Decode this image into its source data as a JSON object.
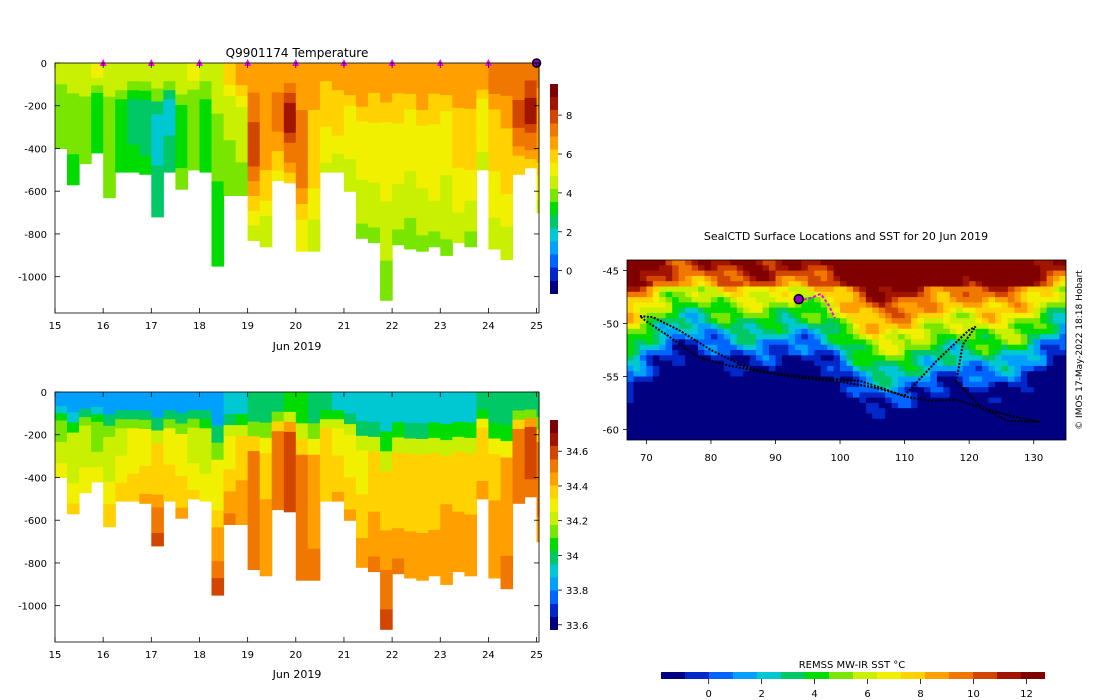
{
  "colors": {
    "ocean": [
      "#000080",
      "#0028c8",
      "#0064ff",
      "#00a0ff",
      "#00c8d2",
      "#00c864",
      "#00dc00",
      "#78e600",
      "#c8f000",
      "#f0f000",
      "#ffd200",
      "#ffa000",
      "#f07800",
      "#d24600",
      "#a01400",
      "#800000"
    ],
    "surface_marker": "#ff00ff",
    "track": "#000000",
    "tag_start": "#8800cc"
  },
  "chart_data": [
    {
      "id": "temperature-section",
      "type": "heatmap",
      "title": "Q9901174  Temperature",
      "xlabel": "Jun 2019",
      "xticks": [
        15,
        16,
        17,
        18,
        19,
        20,
        21,
        22,
        23,
        24,
        25
      ],
      "xlim": [
        15,
        25.05
      ],
      "yticks": [
        0,
        -200,
        -400,
        -600,
        -800,
        -1000
      ],
      "ylim": [
        -1170,
        0
      ],
      "colorbar": {
        "ticks": [
          0,
          2,
          4,
          6,
          8
        ],
        "lim": [
          -1.2,
          9.6
        ]
      },
      "surface_marks": [
        16,
        17,
        18,
        19,
        20,
        21,
        22,
        23,
        24,
        25
      ],
      "profiles": [
        {
          "x": 15.0,
          "depth": 400,
          "surf": 4.6,
          "mid": 3.8,
          "deep": 3.5
        },
        {
          "x": 15.25,
          "depth": 570,
          "surf": 4.8,
          "mid": 3.6,
          "deep": 3.4
        },
        {
          "x": 15.5,
          "depth": 470,
          "surf": 4.8,
          "mid": 4.0,
          "deep": 3.6
        },
        {
          "x": 15.75,
          "depth": 420,
          "surf": 4.9,
          "mid": 3.5,
          "deep": 3.4
        },
        {
          "x": 16.0,
          "depth": 630,
          "surf": 4.7,
          "mid": 3.7,
          "deep": 3.6
        },
        {
          "x": 16.25,
          "depth": 510,
          "surf": 4.6,
          "mid": 3.3,
          "deep": 3.5
        },
        {
          "x": 16.5,
          "depth": 510,
          "surf": 4.6,
          "mid": 2.6,
          "deep": 3.3
        },
        {
          "x": 16.75,
          "depth": 520,
          "surf": 4.6,
          "mid": 2.4,
          "deep": 3.2
        },
        {
          "x": 17.0,
          "depth": 720,
          "surf": 4.7,
          "mid": 1.9,
          "deep": 2.8
        },
        {
          "x": 17.25,
          "depth": 510,
          "surf": 4.6,
          "mid": 2.0,
          "deep": 2.6
        },
        {
          "x": 17.5,
          "depth": 590,
          "surf": 4.8,
          "mid": 3.4,
          "deep": 3.6
        },
        {
          "x": 17.75,
          "depth": 500,
          "surf": 4.9,
          "mid": 3.9,
          "deep": 3.6
        },
        {
          "x": 18.0,
          "depth": 510,
          "surf": 4.4,
          "mid": 3.5,
          "deep": 3.3
        },
        {
          "x": 18.25,
          "depth": 950,
          "surf": 4.8,
          "mid": 3.6,
          "deep": 2.9
        },
        {
          "x": 18.5,
          "depth": 620,
          "surf": 5.8,
          "mid": 4.3,
          "deep": 3.6
        },
        {
          "x": 18.75,
          "depth": 620,
          "surf": 6.3,
          "mid": 4.8,
          "deep": 3.5
        },
        {
          "x": 19.0,
          "depth": 830,
          "surf": 6.5,
          "mid": 7.9,
          "deep": 4.2
        },
        {
          "x": 19.25,
          "depth": 860,
          "surf": 6.6,
          "mid": 6.4,
          "deep": 4.0
        },
        {
          "x": 19.5,
          "depth": 550,
          "surf": 6.7,
          "mid": 7.2,
          "deep": 5.2
        },
        {
          "x": 19.75,
          "depth": 560,
          "surf": 6.8,
          "mid": 8.5,
          "deep": 5.6
        },
        {
          "x": 20.0,
          "depth": 880,
          "surf": 6.6,
          "mid": 7.4,
          "deep": 4.8
        },
        {
          "x": 20.25,
          "depth": 880,
          "surf": 6.4,
          "mid": 6.0,
          "deep": 4.3
        },
        {
          "x": 20.5,
          "depth": 510,
          "surf": 6.3,
          "mid": 5.6,
          "deep": 4.6
        },
        {
          "x": 20.75,
          "depth": 510,
          "surf": 6.5,
          "mid": 5.8,
          "deep": 4.5
        },
        {
          "x": 21.0,
          "depth": 600,
          "surf": 6.6,
          "mid": 5.4,
          "deep": 4.2
        },
        {
          "x": 21.25,
          "depth": 820,
          "surf": 6.7,
          "mid": 5.2,
          "deep": 4.0
        },
        {
          "x": 21.5,
          "depth": 840,
          "surf": 6.5,
          "mid": 5.3,
          "deep": 4.0
        },
        {
          "x": 21.75,
          "depth": 1110,
          "surf": 6.4,
          "mid": 5.0,
          "deep": 3.7
        },
        {
          "x": 22.0,
          "depth": 850,
          "surf": 6.5,
          "mid": 5.2,
          "deep": 3.9
        },
        {
          "x": 22.25,
          "depth": 870,
          "surf": 6.6,
          "mid": 5.0,
          "deep": 3.8
        },
        {
          "x": 22.5,
          "depth": 880,
          "surf": 6.7,
          "mid": 5.2,
          "deep": 3.9
        },
        {
          "x": 22.75,
          "depth": 860,
          "surf": 6.5,
          "mid": 5.4,
          "deep": 4.0
        },
        {
          "x": 23.0,
          "depth": 900,
          "surf": 6.6,
          "mid": 5.0,
          "deep": 3.9
        },
        {
          "x": 23.25,
          "depth": 840,
          "surf": 6.6,
          "mid": 5.8,
          "deep": 4.1
        },
        {
          "x": 23.5,
          "depth": 860,
          "surf": 6.7,
          "mid": 5.6,
          "deep": 4.0
        },
        {
          "x": 23.75,
          "depth": 500,
          "surf": 6.6,
          "mid": 5.4,
          "deep": 4.5
        },
        {
          "x": 24.0,
          "depth": 870,
          "surf": 6.9,
          "mid": 5.7,
          "deep": 4.3
        },
        {
          "x": 24.25,
          "depth": 920,
          "surf": 7.1,
          "mid": 6.0,
          "deep": 4.2
        },
        {
          "x": 24.5,
          "depth": 520,
          "surf": 7.2,
          "mid": 7.7,
          "deep": 5.6
        },
        {
          "x": 24.75,
          "depth": 490,
          "surf": 7.3,
          "mid": 8.3,
          "deep": 6.0
        },
        {
          "x": 25.0,
          "depth": 700,
          "surf": 7.0,
          "mid": 6.6,
          "deep": 4.6
        }
      ]
    },
    {
      "id": "salinity-section",
      "type": "heatmap",
      "title": "",
      "xlabel": "Jun 2019",
      "xticks": [
        15,
        16,
        17,
        18,
        19,
        20,
        21,
        22,
        23,
        24,
        25
      ],
      "xlim": [
        15,
        25.05
      ],
      "yticks": [
        0,
        -200,
        -400,
        -600,
        -800,
        -1000
      ],
      "ylim": [
        -1170,
        0
      ],
      "colorbar": {
        "ticks": [
          33.6,
          33.8,
          34,
          34.2,
          34.4,
          34.6
        ],
        "lim": [
          33.57,
          34.78
        ]
      },
      "profiles": [
        {
          "x": 15.0,
          "depth": 400,
          "surf": 33.85,
          "mid": 34.16,
          "deep": 34.3
        },
        {
          "x": 15.25,
          "depth": 570,
          "surf": 33.85,
          "mid": 34.18,
          "deep": 34.36
        },
        {
          "x": 15.5,
          "depth": 470,
          "surf": 33.86,
          "mid": 34.2,
          "deep": 34.32
        },
        {
          "x": 15.75,
          "depth": 420,
          "surf": 33.84,
          "mid": 34.14,
          "deep": 34.3
        },
        {
          "x": 16.0,
          "depth": 630,
          "surf": 33.85,
          "mid": 34.22,
          "deep": 34.4
        },
        {
          "x": 16.25,
          "depth": 510,
          "surf": 33.86,
          "mid": 34.25,
          "deep": 34.38
        },
        {
          "x": 16.5,
          "depth": 510,
          "surf": 33.86,
          "mid": 34.28,
          "deep": 34.4
        },
        {
          "x": 16.75,
          "depth": 520,
          "surf": 33.85,
          "mid": 34.3,
          "deep": 34.42
        },
        {
          "x": 17.0,
          "depth": 720,
          "surf": 33.84,
          "mid": 34.35,
          "deep": 34.62
        },
        {
          "x": 17.25,
          "depth": 510,
          "surf": 33.85,
          "mid": 34.3,
          "deep": 34.4
        },
        {
          "x": 17.5,
          "depth": 590,
          "surf": 33.86,
          "mid": 34.28,
          "deep": 34.42
        },
        {
          "x": 17.75,
          "depth": 500,
          "surf": 33.85,
          "mid": 34.22,
          "deep": 34.35
        },
        {
          "x": 18.0,
          "depth": 510,
          "surf": 33.85,
          "mid": 34.2,
          "deep": 34.3
        },
        {
          "x": 18.25,
          "depth": 950,
          "surf": 33.86,
          "mid": 34.3,
          "deep": 34.6
        },
        {
          "x": 18.5,
          "depth": 620,
          "surf": 33.88,
          "mid": 34.32,
          "deep": 34.5
        },
        {
          "x": 18.75,
          "depth": 620,
          "surf": 33.9,
          "mid": 34.36,
          "deep": 34.48
        },
        {
          "x": 19.0,
          "depth": 830,
          "surf": 33.95,
          "mid": 34.52,
          "deep": 34.48
        },
        {
          "x": 19.25,
          "depth": 860,
          "surf": 34.0,
          "mid": 34.4,
          "deep": 34.46
        },
        {
          "x": 19.5,
          "depth": 550,
          "surf": 33.95,
          "mid": 34.5,
          "deep": 34.52
        },
        {
          "x": 19.75,
          "depth": 560,
          "surf": 34.05,
          "mid": 34.6,
          "deep": 34.56
        },
        {
          "x": 20.0,
          "depth": 880,
          "surf": 34.05,
          "mid": 34.52,
          "deep": 34.5
        },
        {
          "x": 20.25,
          "depth": 880,
          "surf": 34.0,
          "mid": 34.45,
          "deep": 34.5
        },
        {
          "x": 20.5,
          "depth": 510,
          "surf": 33.95,
          "mid": 34.35,
          "deep": 34.4
        },
        {
          "x": 20.75,
          "depth": 510,
          "surf": 33.92,
          "mid": 34.32,
          "deep": 34.42
        },
        {
          "x": 21.0,
          "depth": 600,
          "surf": 33.9,
          "mid": 34.3,
          "deep": 34.44
        },
        {
          "x": 21.25,
          "depth": 820,
          "surf": 33.9,
          "mid": 34.32,
          "deep": 34.46
        },
        {
          "x": 21.5,
          "depth": 840,
          "surf": 33.88,
          "mid": 34.35,
          "deep": 34.5
        },
        {
          "x": 21.75,
          "depth": 1110,
          "surf": 33.9,
          "mid": 34.36,
          "deep": 34.62
        },
        {
          "x": 22.0,
          "depth": 850,
          "surf": 33.9,
          "mid": 34.34,
          "deep": 34.5
        },
        {
          "x": 22.25,
          "depth": 870,
          "surf": 33.88,
          "mid": 34.35,
          "deep": 34.46
        },
        {
          "x": 22.5,
          "depth": 880,
          "surf": 33.88,
          "mid": 34.34,
          "deep": 34.48
        },
        {
          "x": 22.75,
          "depth": 860,
          "surf": 33.9,
          "mid": 34.35,
          "deep": 34.46
        },
        {
          "x": 23.0,
          "depth": 900,
          "surf": 33.88,
          "mid": 34.4,
          "deep": 34.48
        },
        {
          "x": 23.25,
          "depth": 840,
          "surf": 33.9,
          "mid": 34.38,
          "deep": 34.46
        },
        {
          "x": 23.5,
          "depth": 860,
          "surf": 33.92,
          "mid": 34.36,
          "deep": 34.48
        },
        {
          "x": 23.75,
          "depth": 500,
          "surf": 33.95,
          "mid": 34.38,
          "deep": 34.42
        },
        {
          "x": 24.0,
          "depth": 870,
          "surf": 33.95,
          "mid": 34.4,
          "deep": 34.44
        },
        {
          "x": 24.25,
          "depth": 920,
          "surf": 33.95,
          "mid": 34.45,
          "deep": 34.5
        },
        {
          "x": 24.5,
          "depth": 520,
          "surf": 33.98,
          "mid": 34.55,
          "deep": 34.5
        },
        {
          "x": 24.75,
          "depth": 490,
          "surf": 34.0,
          "mid": 34.6,
          "deep": 34.52
        },
        {
          "x": 25.0,
          "depth": 700,
          "surf": 33.98,
          "mid": 34.5,
          "deep": 34.46
        }
      ]
    },
    {
      "id": "sst-map",
      "type": "heatmap",
      "title": "SealCTD Surface Locations and SST for 20 Jun 2019",
      "xticks": [
        70,
        80,
        90,
        100,
        110,
        120,
        130
      ],
      "xlim": [
        67,
        135
      ],
      "yticks": [
        -45,
        -50,
        -55,
        -60
      ],
      "ylim": [
        -61,
        -44
      ],
      "colorbar_label": "REMSS MW-IR SST °C",
      "colorbar": {
        "ticks": [
          0,
          2,
          4,
          6,
          8,
          10,
          12
        ],
        "lim": [
          -1.8,
          12.7
        ]
      },
      "credit": "© IMOS 17-May-2022 18:18 Hobart",
      "track_lon": [
        69,
        71,
        75,
        80,
        85,
        90,
        95,
        100,
        105,
        110,
        115,
        120,
        121,
        119,
        118,
        122,
        126,
        131,
        127,
        122,
        118,
        114,
        110,
        107,
        103,
        98,
        93,
        88,
        83,
        78,
        73,
        70,
        69
      ],
      "track_lat": [
        -49.3,
        -49.4,
        -50.6,
        -52.5,
        -54.0,
        -54.8,
        -55.2,
        -55.5,
        -56.0,
        -56.8,
        -53.5,
        -50.6,
        -50.3,
        -52.0,
        -55.5,
        -58.0,
        -59.2,
        -59.3,
        -58.8,
        -58.0,
        -57.2,
        -57.3,
        -56.9,
        -56.2,
        -55.4,
        -55.2,
        -54.9,
        -54.6,
        -54.0,
        -53.2,
        -51.0,
        -49.8,
        -49.3
      ],
      "recent_lon": [
        93.6,
        95,
        97,
        98.2,
        99.2
      ],
      "recent_lat": [
        -47.7,
        -47.7,
        -47.2,
        -48.2,
        -49.5
      ],
      "start_lon": 93.6,
      "start_lat": -47.7
    }
  ]
}
